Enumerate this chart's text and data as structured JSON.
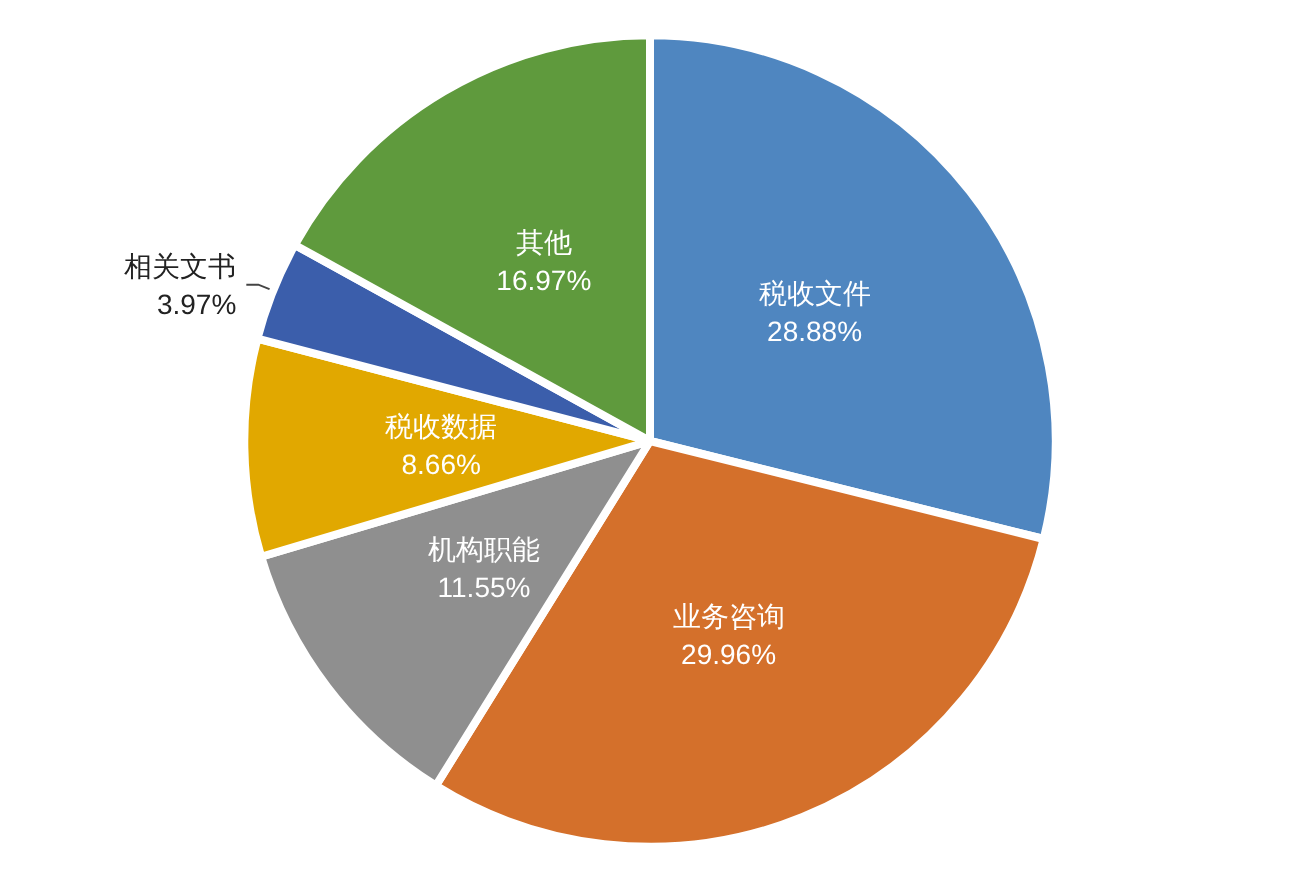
{
  "chart_data": {
    "type": "pie",
    "categories": [
      "税收文件",
      "业务咨询",
      "机构职能",
      "税收数据",
      "相关文书",
      "其他"
    ],
    "values": [
      28.88,
      29.96,
      11.55,
      8.66,
      3.97,
      16.97
    ],
    "value_labels": [
      "28.88%",
      "29.96%",
      "11.55%",
      "8.66%",
      "3.97%",
      "16.97%"
    ],
    "colors": [
      "#4f86c0",
      "#d4702b",
      "#8f8f8f",
      "#e1a800",
      "#3b5eab",
      "#5f9a3d"
    ]
  }
}
